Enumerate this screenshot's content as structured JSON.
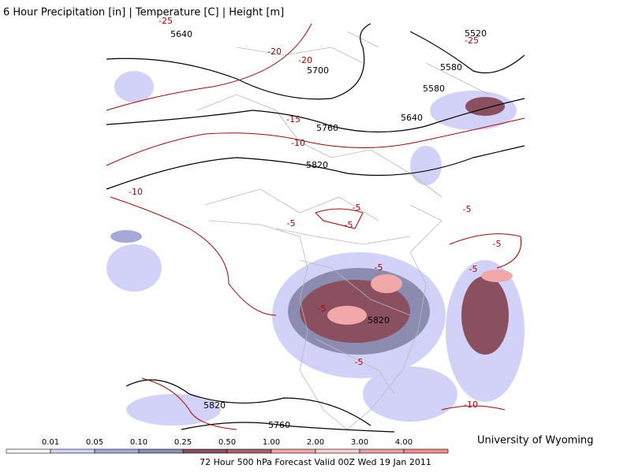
{
  "header": {
    "title": "6 Hour Precipitation [in] | Temperature [C] | Height [m]"
  },
  "contour_labels": {
    "height": [
      "5640",
      "5520",
      "5700",
      "5580",
      "5580",
      "5640",
      "5760",
      "5820",
      "5820",
      "5820",
      "5760"
    ],
    "temperature": [
      "-25",
      "-25",
      "-20",
      "-20",
      "-15",
      "-10",
      "-10",
      "-5",
      "-5",
      "-5",
      "-5",
      "-5",
      "-5",
      "-5",
      "-5",
      "-5",
      "-10"
    ]
  },
  "legend": {
    "labels": [
      "0.01",
      "0.05",
      "0.10",
      "0.25",
      "0.50",
      "1.00",
      "2.00",
      "3.00",
      "4.00"
    ],
    "colors": [
      "#ffffff",
      "#d2d2f8",
      "#a8a8d8",
      "#8c8cb0",
      "#8a5060",
      "#a86070",
      "#f0a8a8",
      "#f8d0d0",
      "#e8a0a0",
      "#f09090"
    ]
  },
  "footer": {
    "forecast": "72 Hour 500 hPa Forecast Valid 00Z Wed 19 Jan 2011",
    "credit": "University of Wyoming"
  }
}
